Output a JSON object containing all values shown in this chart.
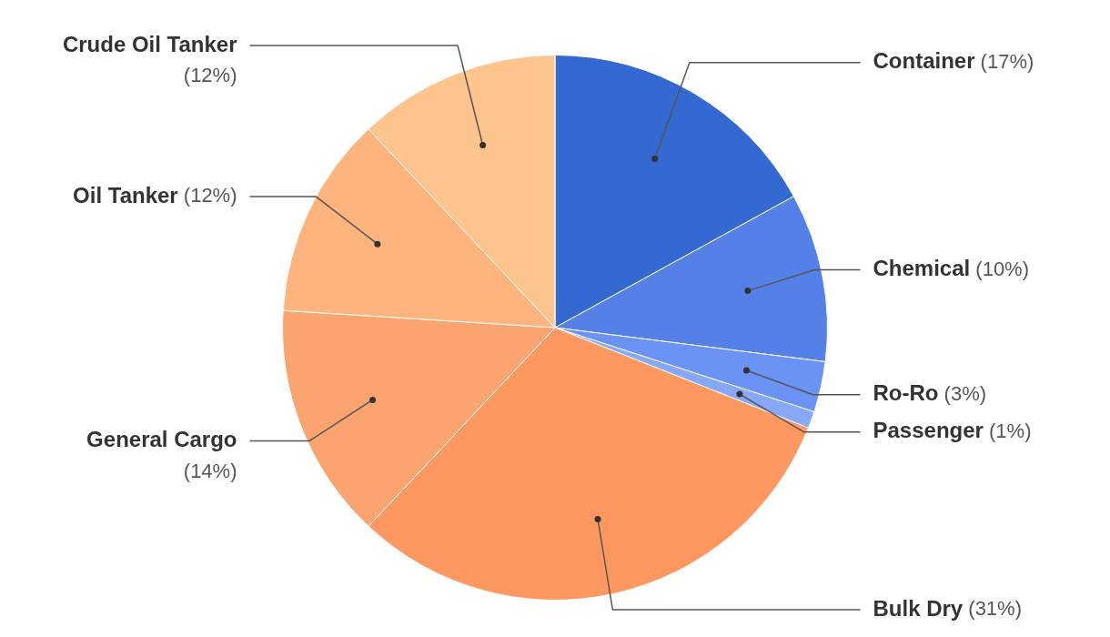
{
  "chart_data": {
    "type": "pie",
    "categories": [
      "Container",
      "Chemical",
      "Ro-Ro",
      "Passenger",
      "Bulk Dry",
      "General Cargo",
      "Oil Tanker",
      "Crude Oil Tanker"
    ],
    "values": [
      17,
      10,
      3,
      1,
      31,
      14,
      12,
      12
    ],
    "value_labels": [
      "(17%)",
      "(10%)",
      "(3%)",
      "(1%)",
      "(31%)",
      "(14%)",
      "(12%)",
      "(12%)"
    ],
    "colors": [
      "#3369d1",
      "#5580e8",
      "#6b93f5",
      "#86a8f7",
      "#ff9860",
      "#fca46f",
      "#feb47c",
      "#fec48e"
    ],
    "legend": false
  }
}
